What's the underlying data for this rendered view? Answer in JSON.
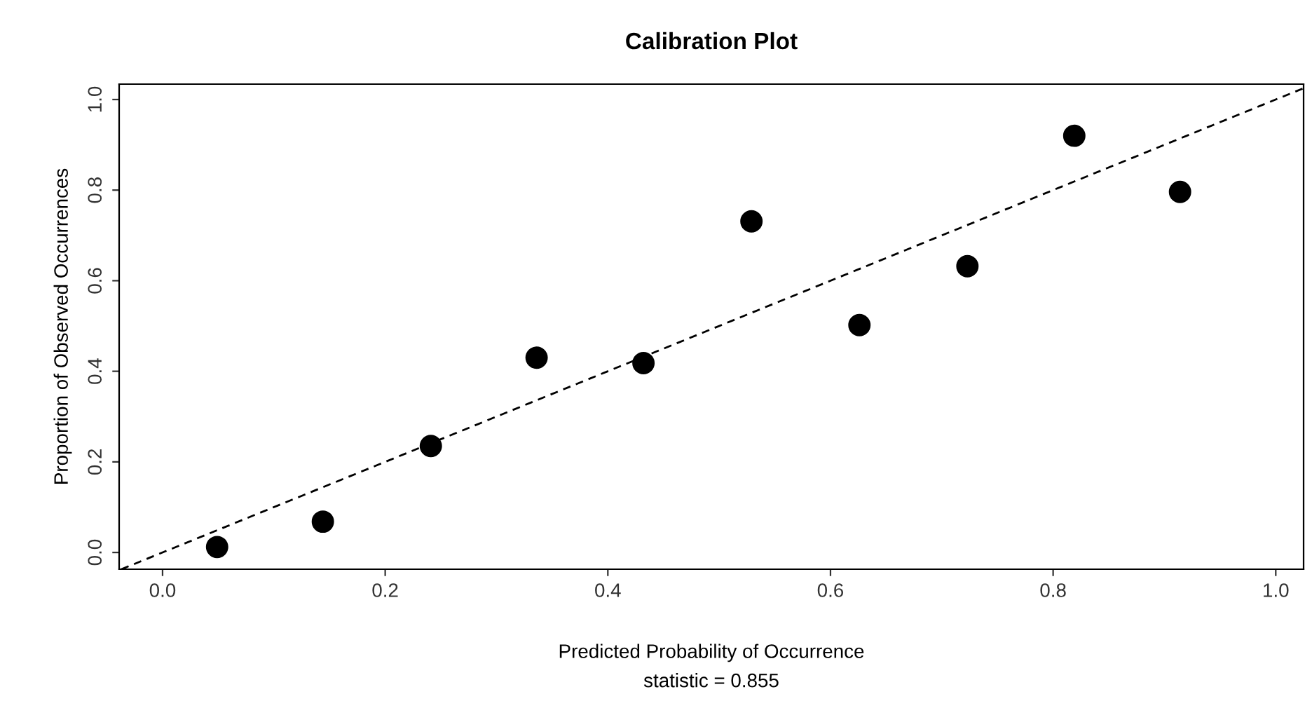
{
  "chart_data": {
    "type": "scatter",
    "title": "Calibration Plot",
    "xlabel": "Predicted Probability of Occurrence",
    "ylabel": "Proportion of Observed Occurrences",
    "annotations": [
      "statistic = 0.855"
    ],
    "x": [
      0.049,
      0.144,
      0.241,
      0.336,
      0.432,
      0.529,
      0.626,
      0.723,
      0.819,
      0.914
    ],
    "series": [
      {
        "color": "#000000",
        "marker": "circle",
        "values": [
          0.012,
          0.068,
          0.235,
          0.43,
          0.418,
          0.731,
          0.502,
          0.632,
          0.92,
          0.796
        ]
      },
      {
        "type": "line",
        "color": "#000000",
        "line_style": "dashed",
        "marker": "none",
        "x": [
          -0.037,
          1.025
        ],
        "values": [
          -0.037,
          1.025
        ]
      }
    ],
    "xlim": [
      -0.039,
      1.025
    ],
    "ylim": [
      -0.037,
      1.034
    ],
    "xticks": [
      {
        "value": 0,
        "label": "0.0"
      },
      0.2,
      0.4,
      0.6,
      0.8,
      {
        "value": 1,
        "label": "1.0"
      }
    ],
    "yticks": [
      {
        "value": 0,
        "label": "0.0"
      },
      0.2,
      0.4,
      0.6,
      0.8,
      {
        "value": 1,
        "label": "1.0"
      }
    ],
    "grid": false,
    "legend": false
  }
}
